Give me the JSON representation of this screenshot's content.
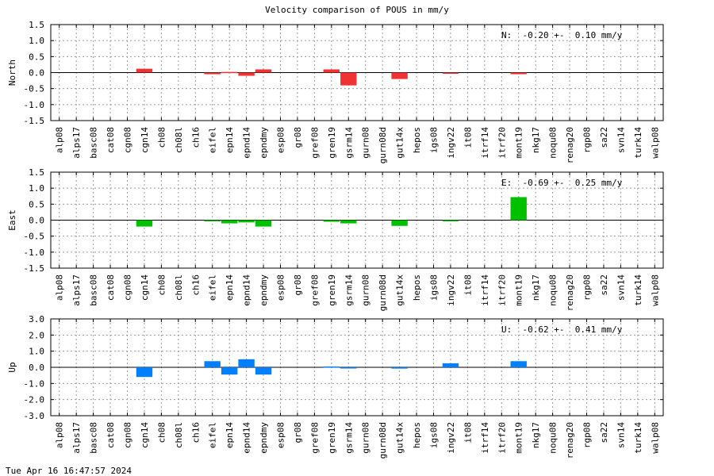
{
  "title": "Velocity comparison of POUS in mm/y",
  "timestamp": "Tue Apr 16 16:47:57 2024",
  "chart_data": [
    {
      "type": "bar",
      "ylabel": "North",
      "stat": "N:  -0.20 +-  0.10 mm/y",
      "color": "#f03232",
      "ylim": [
        -1.5,
        1.5
      ],
      "yticks": [
        -1.5,
        -1.0,
        -0.5,
        0.0,
        0.5,
        1.0,
        1.5
      ],
      "ytick_labels": [
        "-1.5",
        "-1.0",
        "-0.5",
        "0.0",
        "0.5",
        "1.0",
        "1.5"
      ],
      "grid": true,
      "categories": [
        "alp08",
        "alps17",
        "basc08",
        "cat08",
        "cgn08",
        "cgn14",
        "ch08",
        "ch08l",
        "ch16",
        "eifel",
        "epn14",
        "epnd14",
        "epndmy",
        "esp08",
        "gr08",
        "gref08",
        "gren19",
        "gsrm14",
        "gurn08",
        "gurn08d",
        "gut14x",
        "hepos",
        "igs08",
        "ingv22",
        "it08",
        "itrf14",
        "itrf20",
        "mont19",
        "nkg17",
        "noqu08",
        "renag20",
        "rgp08",
        "sa22",
        "svn14",
        "turk14",
        "walp08"
      ],
      "values": [
        null,
        null,
        null,
        null,
        null,
        0.12,
        null,
        null,
        null,
        -0.05,
        0.02,
        -0.1,
        0.1,
        null,
        null,
        null,
        0.1,
        -0.4,
        null,
        null,
        -0.2,
        null,
        null,
        -0.03,
        null,
        null,
        null,
        -0.05,
        null,
        null,
        null,
        null,
        null,
        null,
        null,
        null
      ]
    },
    {
      "type": "bar",
      "ylabel": "East",
      "stat": "E:  -0.69 +-  0.25 mm/y",
      "color": "#00c000",
      "ylim": [
        -1.5,
        1.5
      ],
      "yticks": [
        -1.5,
        -1.0,
        -0.5,
        0.0,
        0.5,
        1.0,
        1.5
      ],
      "ytick_labels": [
        "-1.5",
        "-1.0",
        "-0.5",
        "0.0",
        "0.5",
        "1.0",
        "1.5"
      ],
      "grid": true,
      "categories": [
        "alp08",
        "alps17",
        "basc08",
        "cat08",
        "cgn08",
        "cgn14",
        "ch08",
        "ch08l",
        "ch16",
        "eifel",
        "epn14",
        "epnd14",
        "epndmy",
        "esp08",
        "gr08",
        "gref08",
        "gren19",
        "gsrm14",
        "gurn08",
        "gurn08d",
        "gut14x",
        "hepos",
        "igs08",
        "ingv22",
        "it08",
        "itrf14",
        "itrf20",
        "mont19",
        "nkg17",
        "noqu08",
        "renag20",
        "rgp08",
        "sa22",
        "svn14",
        "turk14",
        "walp08"
      ],
      "values": [
        null,
        null,
        null,
        null,
        null,
        -0.2,
        null,
        null,
        null,
        -0.03,
        -0.1,
        -0.07,
        -0.2,
        null,
        null,
        null,
        -0.05,
        -0.1,
        null,
        null,
        -0.18,
        null,
        null,
        -0.03,
        null,
        null,
        null,
        0.72,
        null,
        null,
        null,
        null,
        null,
        null,
        null,
        null
      ]
    },
    {
      "type": "bar",
      "ylabel": "Up",
      "stat": "U:  -0.62 +-  0.41 mm/y",
      "color": "#0080ff",
      "ylim": [
        -3.0,
        3.0
      ],
      "yticks": [
        -3.0,
        -2.0,
        -1.0,
        0.0,
        1.0,
        2.0,
        3.0
      ],
      "ytick_labels": [
        "-3.0",
        "-2.0",
        "-1.0",
        "0.0",
        "1.0",
        "2.0",
        "3.0"
      ],
      "grid": true,
      "categories": [
        "alp08",
        "alps17",
        "basc08",
        "cat08",
        "cgn08",
        "cgn14",
        "ch08",
        "ch08l",
        "ch16",
        "eifel",
        "epn14",
        "epnd14",
        "epndmy",
        "esp08",
        "gr08",
        "gref08",
        "gren19",
        "gsrm14",
        "gurn08",
        "gurn08d",
        "gut14x",
        "hepos",
        "igs08",
        "ingv22",
        "it08",
        "itrf14",
        "itrf20",
        "mont19",
        "nkg17",
        "noqu08",
        "renag20",
        "rgp08",
        "sa22",
        "svn14",
        "turk14",
        "walp08"
      ],
      "values": [
        null,
        null,
        null,
        null,
        null,
        -0.6,
        null,
        null,
        null,
        0.38,
        -0.45,
        0.5,
        -0.45,
        null,
        null,
        null,
        0.05,
        -0.05,
        null,
        null,
        -0.08,
        null,
        null,
        0.25,
        null,
        null,
        null,
        0.38,
        null,
        null,
        null,
        null,
        null,
        null,
        null,
        null
      ]
    }
  ]
}
